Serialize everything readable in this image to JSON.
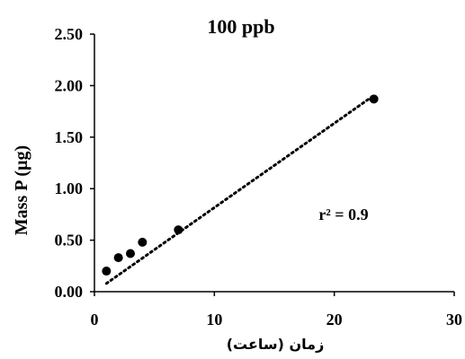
{
  "chart_data": {
    "type": "scatter",
    "title": "100 ppb",
    "xlabel": "زمان (ساعت)",
    "ylabel": "Mass P (µg)",
    "xlim": [
      0,
      30
    ],
    "ylim": [
      0,
      2.5
    ],
    "x_ticks": [
      "0",
      "10",
      "20",
      "30"
    ],
    "y_ticks": [
      "0.00",
      "0.50",
      "1.00",
      "1.50",
      "2.00",
      "2.50"
    ],
    "grid": false,
    "legend": "none",
    "series": [
      {
        "x": [
          1,
          2,
          3,
          4,
          7,
          23.3
        ],
        "y": [
          0.2,
          0.33,
          0.37,
          0.48,
          0.6,
          1.87
        ]
      }
    ],
    "trendline": {
      "style": "dotted",
      "x": [
        1,
        23
      ],
      "y": [
        0.08,
        1.88
      ]
    },
    "annotation": "r² = 0.9",
    "colors": {
      "marker": "#000000",
      "axis": "#000000",
      "trendline": "#000000"
    }
  }
}
